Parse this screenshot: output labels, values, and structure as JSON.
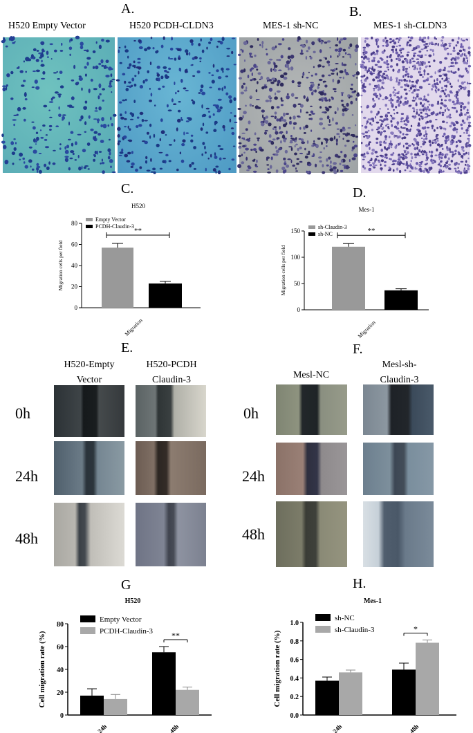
{
  "panels": {
    "A": "A.",
    "B": "B.",
    "C": "C.",
    "D": "D.",
    "E": "E.",
    "F": "F.",
    "G": "G",
    "H": "H."
  },
  "micrographs": {
    "titles": [
      "H520 Empty Vector",
      "H520 PCDH-CLDN3",
      "MES-1 sh-NC",
      "MES-1 sh-CLDN3"
    ]
  },
  "wound": {
    "E": {
      "col1": [
        "H520-Empty",
        "Vector"
      ],
      "col2": [
        "H520-PCDH",
        "Claudin-3"
      ]
    },
    "F": {
      "col1": [
        "Mesl-NC",
        ""
      ],
      "col2": [
        "Mesl-sh-",
        "Claudin-3"
      ]
    },
    "rows": [
      "0h",
      "24h",
      "48h"
    ]
  },
  "colors": {
    "gray": "#999999",
    "black": "#000000",
    "lightgray": "#a8a8a8"
  },
  "chart_data": [
    {
      "id": "C",
      "type": "bar",
      "title": "H520",
      "ylabel": "Migration cells per field",
      "xlabel": "Migration",
      "ylim": [
        0,
        80
      ],
      "yticks": [
        0,
        20,
        40,
        60,
        80
      ],
      "series": [
        {
          "name": "Empty Vector",
          "values": [
            57
          ],
          "err": [
            4
          ],
          "color": "#999999"
        },
        {
          "name": "PCDH-Claudin-3",
          "values": [
            23
          ],
          "err": [
            2
          ],
          "color": "#000000"
        }
      ],
      "significance": "**"
    },
    {
      "id": "D",
      "type": "bar",
      "title": "Mes-1",
      "ylabel": "Migration cells per field",
      "xlabel": "Migration",
      "ylim": [
        0,
        150
      ],
      "yticks": [
        0,
        50,
        100,
        150
      ],
      "series": [
        {
          "name": "sh-Claudin-3",
          "values": [
            120
          ],
          "err": [
            6
          ],
          "color": "#999999"
        },
        {
          "name": "sh-NC",
          "values": [
            37
          ],
          "err": [
            3
          ],
          "color": "#000000"
        }
      ],
      "significance": "**"
    },
    {
      "id": "G",
      "type": "bar",
      "title": "H520",
      "ylabel": "Cell migration rate (%)",
      "categories": [
        "24h",
        "48h"
      ],
      "ylim": [
        0,
        80
      ],
      "yticks": [
        0,
        20,
        40,
        60,
        80
      ],
      "series": [
        {
          "name": "Empty Vector",
          "values": [
            17,
            55
          ],
          "err": [
            6,
            5
          ],
          "color": "#000000"
        },
        {
          "name": "PCDH-Claudin-3",
          "values": [
            14,
            22
          ],
          "err": [
            4,
            2.5
          ],
          "color": "#a8a8a8"
        }
      ],
      "significance": {
        "category": "48h",
        "label": "**"
      }
    },
    {
      "id": "H",
      "type": "bar",
      "title": "Mes-1",
      "ylabel": "Cell migration rate (%)",
      "categories": [
        "24h",
        "48h"
      ],
      "ylim": [
        0,
        1.0
      ],
      "yticks": [
        "0.0",
        "0.2",
        "0.4",
        "0.6",
        "0.8",
        "1.0"
      ],
      "series": [
        {
          "name": "sh-NC",
          "values": [
            0.37,
            0.49
          ],
          "err": [
            0.04,
            0.07
          ],
          "color": "#000000"
        },
        {
          "name": "sh-Claudin-3",
          "values": [
            0.46,
            0.78
          ],
          "err": [
            0.025,
            0.03
          ],
          "color": "#a8a8a8"
        }
      ],
      "significance": {
        "category": "48h",
        "label": "*"
      }
    }
  ]
}
